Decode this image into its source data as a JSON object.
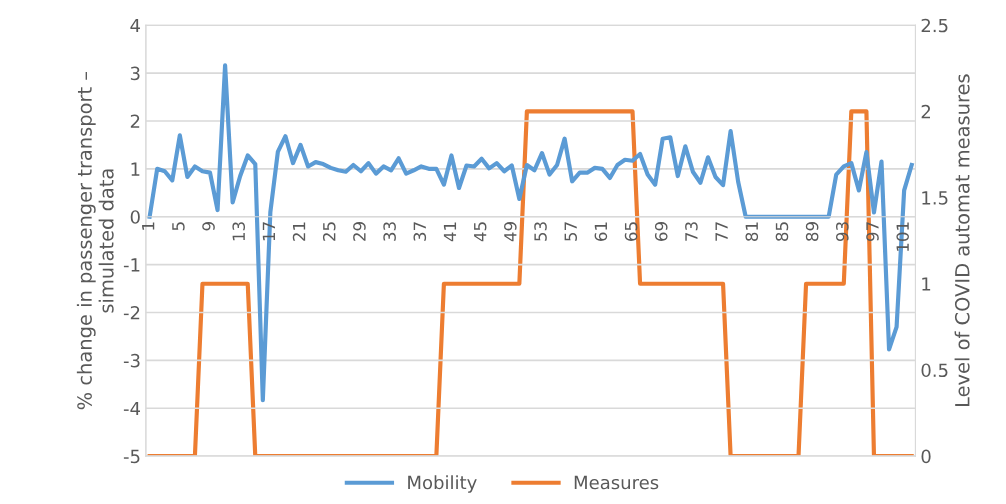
{
  "chart_data": {
    "type": "line",
    "ylabel": "% change in passenger transport –\nsimulated data",
    "y2label": "Level of COVID automat measures",
    "categories": [
      "1",
      null,
      null,
      null,
      "5",
      null,
      null,
      null,
      "9",
      null,
      null,
      null,
      "13",
      null,
      null,
      null,
      "17",
      null,
      null,
      null,
      "21",
      null,
      null,
      null,
      "25",
      null,
      null,
      null,
      "29",
      null,
      null,
      null,
      "33",
      null,
      null,
      null,
      "37",
      null,
      null,
      null,
      "41",
      null,
      null,
      null,
      "45",
      null,
      null,
      null,
      "49",
      null,
      null,
      null,
      "53",
      null,
      null,
      null,
      "57",
      null,
      null,
      null,
      "61",
      null,
      null,
      null,
      "65",
      null,
      null,
      null,
      "69",
      null,
      null,
      null,
      "73",
      null,
      null,
      null,
      "77",
      null,
      null,
      null,
      "81",
      null,
      null,
      null,
      "85",
      null,
      null,
      null,
      "89",
      null,
      null,
      null,
      "93",
      null,
      null,
      null,
      "97",
      null,
      null,
      null,
      "101",
      null
    ],
    "series": [
      {
        "name": "Mobility",
        "color": "#5b9bd5",
        "values": [
          0,
          1.0,
          0.95,
          0.76,
          1.7,
          0.83,
          1.05,
          0.95,
          0.92,
          0.14,
          3.16,
          0.3,
          0.85,
          1.28,
          1.1,
          -3.83,
          0.1,
          1.36,
          1.68,
          1.12,
          1.5,
          1.05,
          1.14,
          1.1,
          1.02,
          0.97,
          0.94,
          1.08,
          0.95,
          1.12,
          0.9,
          1.05,
          0.97,
          1.22,
          0.9,
          0.97,
          1.05,
          1.0,
          1.0,
          0.67,
          1.28,
          0.6,
          1.07,
          1.05,
          1.21,
          1.01,
          1.12,
          0.95,
          1.07,
          0.37,
          1.08,
          0.97,
          1.33,
          0.88,
          1.08,
          1.63,
          0.74,
          0.92,
          0.92,
          1.02,
          1.0,
          0.81,
          1.08,
          1.19,
          1.17,
          1.31,
          0.88,
          0.67,
          1.63,
          1.66,
          0.85,
          1.47,
          0.94,
          0.71,
          1.24,
          0.83,
          0.66,
          1.79,
          0.73,
          0,
          0,
          0,
          0,
          0,
          0,
          0,
          0,
          0,
          0,
          0,
          0,
          0.88,
          1.05,
          1.12,
          0.55,
          1.35,
          0.09,
          1.15,
          -2.77,
          -2.3,
          0.55,
          1.08
        ]
      },
      {
        "name": "Measures",
        "color": "#ed7d31",
        "axis": "y2",
        "values": [
          0,
          0,
          0,
          0,
          0,
          0,
          0,
          1,
          1,
          1,
          1,
          1,
          1,
          1,
          0,
          0,
          0,
          0,
          0,
          0,
          0,
          0,
          0,
          0,
          0,
          0,
          0,
          0,
          0,
          0,
          0,
          0,
          0,
          0,
          0,
          0,
          0,
          0,
          0,
          1,
          1,
          1,
          1,
          1,
          1,
          1,
          1,
          1,
          1,
          1,
          2,
          2,
          2,
          2,
          2,
          2,
          2,
          2,
          2,
          2,
          2,
          2,
          2,
          2,
          2,
          1,
          1,
          1,
          1,
          1,
          1,
          1,
          1,
          1,
          1,
          1,
          1,
          0,
          0,
          0,
          0,
          0,
          0,
          0,
          0,
          0,
          0,
          1,
          1,
          1,
          1,
          1,
          1,
          2,
          2,
          2,
          0,
          0,
          0,
          0,
          0,
          0
        ]
      }
    ],
    "ylim": [
      -5,
      4
    ],
    "yticks": [
      -5,
      -4,
      -3,
      -2,
      -1,
      0,
      1,
      2,
      3,
      4
    ],
    "y2lim": [
      0,
      2.5
    ],
    "y2ticks": [
      0,
      0.5,
      1,
      1.5,
      2,
      2.5
    ],
    "grid": "y",
    "legend": "bottom",
    "marker": "none",
    "line_style": "solid"
  }
}
